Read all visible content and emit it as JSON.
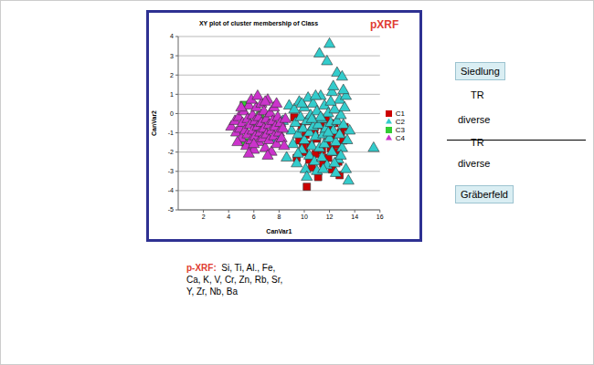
{
  "chart_data": {
    "type": "scatter",
    "title": "XY plot of cluster membership of Class",
    "x_label": "CanVar1",
    "y_label": "CanVar2",
    "xlim": [
      0,
      16
    ],
    "xticks": [
      2,
      4,
      6,
      8,
      10,
      12,
      14,
      16
    ],
    "ylim": [
      -5,
      4
    ],
    "yticks": [
      -5,
      -4,
      -3,
      -2,
      -1,
      0,
      1,
      2,
      3,
      4
    ],
    "grid": true,
    "legend": "right",
    "series": [
      {
        "name": "C1",
        "color": "#cc0000",
        "marker": "square",
        "x": [
          9.2,
          9.4,
          9.6,
          9.8,
          10.0,
          10.1,
          10.2,
          10.3,
          10.5,
          10.6,
          10.8,
          10.9,
          11.0,
          11.1,
          11.3,
          11.4,
          11.5,
          11.6,
          11.8,
          11.9,
          12.0,
          12.1,
          12.2,
          12.3,
          12.4,
          12.5,
          12.6,
          12.8,
          12.9,
          13.1,
          13.2,
          10.4,
          11.7,
          12.7,
          9.9
        ],
        "y": [
          -0.2,
          -2.3,
          -1.4,
          -0.7,
          -2.0,
          -1.1,
          -3.8,
          -0.4,
          -1.6,
          -2.8,
          -0.9,
          -2.1,
          -1.3,
          -3.3,
          -0.6,
          -1.9,
          -2.6,
          -1.0,
          -1.5,
          -2.3,
          -0.8,
          -1.8,
          -2.9,
          -1.2,
          -0.5,
          -2.0,
          -1.6,
          -3.2,
          -1.0,
          -1.4,
          -0.7,
          -2.4,
          -0.3,
          -2.5,
          -1.7
        ]
      },
      {
        "name": "C2",
        "color": "#33cccc",
        "marker": "triangle",
        "x": [
          7.8,
          8.3,
          8.6,
          8.8,
          9.0,
          9.1,
          9.2,
          9.3,
          9.4,
          9.5,
          9.6,
          9.7,
          9.8,
          9.9,
          10.0,
          10.0,
          10.1,
          10.2,
          10.3,
          10.4,
          10.4,
          10.5,
          10.6,
          10.7,
          10.7,
          10.8,
          10.9,
          11.0,
          11.0,
          11.1,
          11.2,
          11.2,
          11.3,
          11.4,
          11.4,
          11.5,
          11.6,
          11.6,
          11.7,
          11.8,
          11.8,
          11.9,
          12.0,
          12.0,
          12.1,
          12.2,
          12.2,
          12.3,
          12.3,
          12.4,
          12.5,
          12.5,
          12.6,
          12.6,
          12.7,
          12.8,
          12.8,
          12.9,
          13.0,
          13.0,
          13.1,
          13.2,
          13.3,
          13.3,
          13.4,
          13.5,
          13.6,
          15.5,
          9.5,
          10.2,
          11.5,
          12.1,
          10.9,
          9.8,
          11.3,
          12.9,
          10.6,
          11.9,
          12.4,
          13.1
        ],
        "y": [
          -1.3,
          -0.4,
          -2.3,
          0.4,
          -0.9,
          -1.6,
          0.2,
          -0.5,
          -2.6,
          -1.1,
          0.6,
          -0.2,
          -1.9,
          -0.8,
          0.3,
          -1.4,
          -2.9,
          -0.4,
          0.8,
          -1.0,
          -2.2,
          -0.1,
          -1.7,
          0.5,
          -0.7,
          -2.5,
          -1.2,
          0.1,
          -3.0,
          -0.6,
          3.1,
          -1.8,
          0.9,
          -0.3,
          -2.3,
          -1.1,
          0.4,
          -1.6,
          -0.8,
          2.7,
          -2.7,
          0,
          3.6,
          -1.3,
          -0.5,
          1.1,
          -2.0,
          1.4,
          -0.9,
          0.2,
          -1.5,
          -3.1,
          2.1,
          -0.4,
          -2.4,
          0.7,
          -1.1,
          -0.1,
          1.9,
          -1.8,
          -0.6,
          0.3,
          0.9,
          -2.9,
          -1.4,
          -3.5,
          -0.9,
          -1.8,
          -2.1,
          -3.3,
          -2.9,
          0.6,
          0.9,
          0.5,
          -0.2,
          -2.2,
          -0.3,
          -1.0,
          -2.6,
          1.2
        ]
      },
      {
        "name": "C3",
        "color": "#33cc33",
        "marker": "square",
        "x": [
          5.2,
          5.3,
          6.5,
          6.1
        ],
        "y": [
          0.45,
          -1.5,
          -0.1,
          -0.7
        ]
      },
      {
        "name": "C4",
        "color": "#cc33cc",
        "marker": "triangle",
        "x": [
          4.2,
          4.5,
          4.6,
          4.8,
          4.9,
          5.0,
          5.1,
          5.2,
          5.3,
          5.4,
          5.5,
          5.5,
          5.6,
          5.7,
          5.8,
          5.9,
          5.9,
          6.0,
          6.1,
          6.1,
          6.2,
          6.3,
          6.4,
          6.4,
          6.5,
          6.6,
          6.6,
          6.7,
          6.8,
          6.8,
          6.9,
          7.0,
          7.0,
          7.1,
          7.2,
          7.2,
          7.3,
          7.4,
          7.4,
          7.5,
          7.6,
          7.6,
          7.7,
          7.8,
          7.9,
          8.0,
          8.1,
          8.2,
          8.3,
          8.5,
          5.0,
          5.8,
          6.3,
          7.8,
          4.7,
          6.0,
          5.6,
          7.1,
          8.4,
          6.9
        ],
        "y": [
          -0.7,
          -0.4,
          -1.0,
          -0.2,
          -0.8,
          -1.3,
          -0.5,
          0.1,
          -0.9,
          -1.7,
          -0.3,
          -1.1,
          0.4,
          -0.6,
          -1.4,
          -0.1,
          -0.9,
          -1.9,
          -0.4,
          -1.2,
          0.3,
          -0.7,
          -1.5,
          -0.2,
          -1.0,
          0.5,
          -0.5,
          -1.3,
          -0.8,
          0.1,
          -1.8,
          -0.3,
          -1.1,
          0.7,
          -0.6,
          -1.4,
          0,
          -0.9,
          -2.0,
          -0.4,
          -1.2,
          0.3,
          -0.7,
          -1.6,
          -0.2,
          -1.0,
          -0.5,
          -1.3,
          -0.8,
          -0.3,
          0.3,
          0.7,
          0.9,
          0.5,
          -1.5,
          -1.6,
          -2.1,
          -2.2,
          -1.7,
          0.6
        ]
      }
    ],
    "annotations": {
      "corner": "pXRF",
      "side_labels": {
        "top_box": "Siedlung",
        "top": [
          "TR",
          "diverse"
        ],
        "bottom": [
          "TR",
          "diverse"
        ],
        "bottom_box": "Gräberfeld"
      },
      "footnote": {
        "label": "p-XRF:",
        "lines": [
          "Si, Ti, Al., Fe,",
          "Ca, K, V, Cr, Zn, Rb, Sr,",
          "Y, Zr, Nb, Ba"
        ]
      }
    }
  }
}
